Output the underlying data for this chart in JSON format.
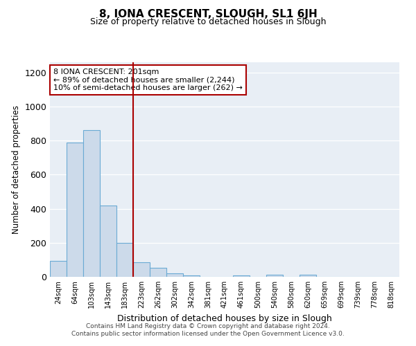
{
  "title": "8, IONA CRESCENT, SLOUGH, SL1 6JH",
  "subtitle": "Size of property relative to detached houses in Slough",
  "xlabel": "Distribution of detached houses by size in Slough",
  "ylabel": "Number of detached properties",
  "bar_labels": [
    "24sqm",
    "64sqm",
    "103sqm",
    "143sqm",
    "183sqm",
    "223sqm",
    "262sqm",
    "302sqm",
    "342sqm",
    "381sqm",
    "421sqm",
    "461sqm",
    "500sqm",
    "540sqm",
    "580sqm",
    "620sqm",
    "659sqm",
    "699sqm",
    "739sqm",
    "778sqm",
    "818sqm"
  ],
  "bar_values": [
    93,
    790,
    863,
    418,
    200,
    85,
    52,
    20,
    8,
    0,
    0,
    10,
    0,
    12,
    0,
    12,
    0,
    0,
    0,
    0,
    0
  ],
  "bar_color": "#ccdaea",
  "bar_edge_color": "#6aaad4",
  "vline_x_idx": 4.5,
  "vline_color": "#aa0000",
  "annotation_title": "8 IONA CRESCENT: 201sqm",
  "annotation_line1": "← 89% of detached houses are smaller (2,244)",
  "annotation_line2": "10% of semi-detached houses are larger (262) →",
  "annotation_box_facecolor": "#ffffff",
  "annotation_box_edgecolor": "#aa0000",
  "ylim": [
    0,
    1260
  ],
  "yticks": [
    0,
    200,
    400,
    600,
    800,
    1000,
    1200
  ],
  "plot_bg_color": "#e8eef5",
  "footer1": "Contains HM Land Registry data © Crown copyright and database right 2024.",
  "footer2": "Contains public sector information licensed under the Open Government Licence v3.0."
}
